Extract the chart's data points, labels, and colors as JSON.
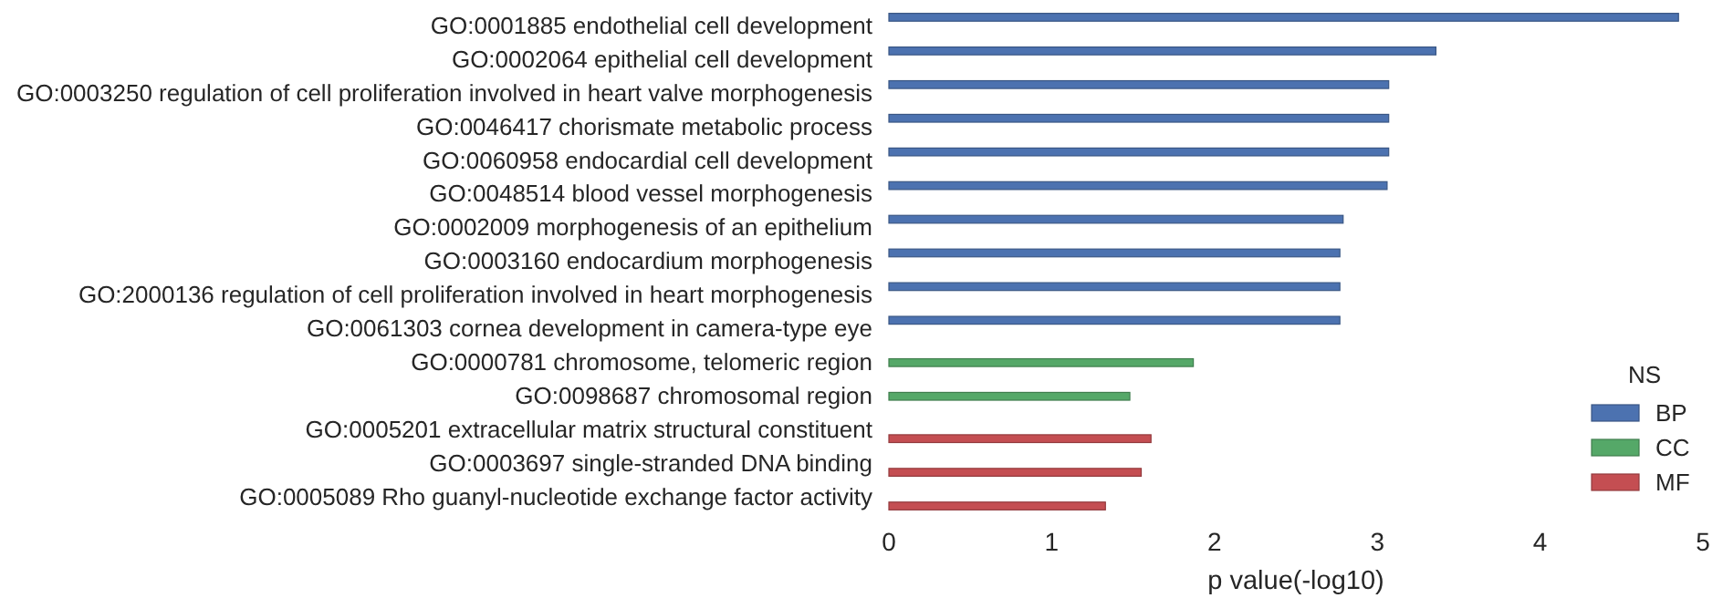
{
  "chart_data": {
    "type": "bar",
    "orientation": "horizontal",
    "xlabel": "p value(-log10)",
    "legend_title": "NS",
    "legend": "bottom right",
    "grid": false,
    "categories": [
      "GO:0001885 endothelial cell development",
      "GO:0002064 epithelial cell development",
      "GO:0003250 regulation of cell proliferation involved in heart valve morphogenesis",
      "GO:0046417 chorismate metabolic process",
      "GO:0060958 endocardial cell development",
      "GO:0048514 blood vessel morphogenesis",
      "GO:0002009 morphogenesis of an epithelium",
      "GO:0003160 endocardium morphogenesis",
      "GO:2000136 regulation of cell proliferation involved in heart morphogenesis",
      "GO:0061303 cornea development in camera-type eye",
      "GO:0000781 chromosome, telomeric region",
      "GO:0098687 chromosomal region",
      "GO:0005201 extracellular matrix structural constituent",
      "GO:0003697 single-stranded DNA binding",
      "GO:0005089 Rho guanyl-nucleotide exchange factor activity"
    ],
    "series": [
      {
        "name": "BP",
        "color": "#4c72b0",
        "values": [
          4.85,
          3.36,
          3.07,
          3.07,
          3.07,
          3.06,
          2.79,
          2.77,
          2.77,
          2.77,
          null,
          null,
          null,
          null,
          null
        ]
      },
      {
        "name": "CC",
        "color": "#55a868",
        "values": [
          null,
          null,
          null,
          null,
          null,
          null,
          null,
          null,
          null,
          null,
          1.87,
          1.48,
          null,
          null,
          null
        ]
      },
      {
        "name": "MF",
        "color": "#c44e52",
        "values": [
          null,
          null,
          null,
          null,
          null,
          null,
          null,
          null,
          null,
          null,
          null,
          null,
          1.61,
          1.55,
          1.33
        ]
      }
    ],
    "xlim": [
      0,
      5
    ],
    "xticks": [
      0,
      1,
      2,
      3,
      4,
      5
    ]
  }
}
